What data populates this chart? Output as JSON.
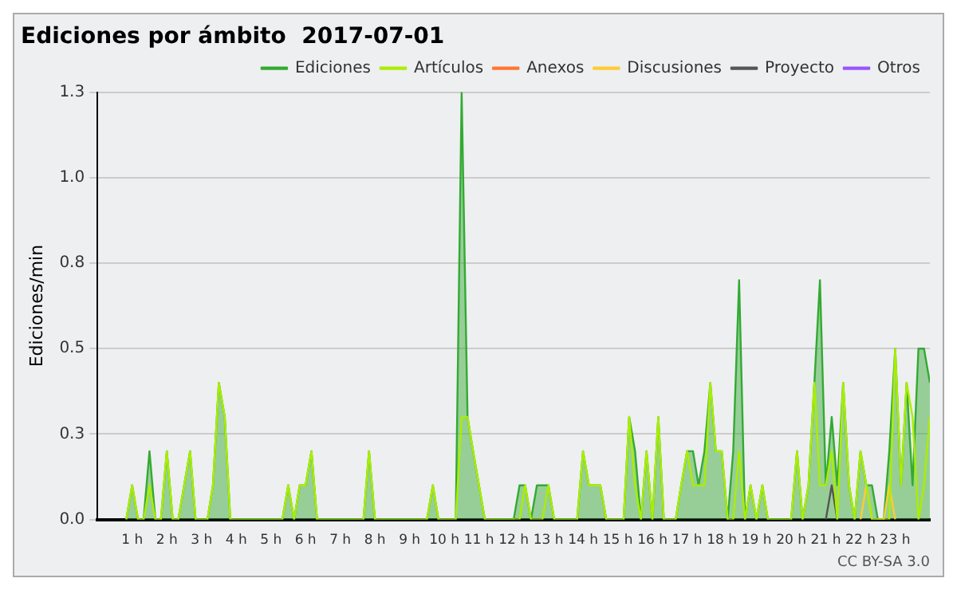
{
  "chart_data": {
    "type": "line",
    "title": "Ediciones por ámbito  2017-07-01",
    "ylabel": "Ediciones/min",
    "xlim": [
      0,
      24
    ],
    "xticks": [
      {
        "value": 1,
        "label": "1 h"
      },
      {
        "value": 2,
        "label": "2 h"
      },
      {
        "value": 3,
        "label": "3 h"
      },
      {
        "value": 4,
        "label": "4 h"
      },
      {
        "value": 5,
        "label": "5 h"
      },
      {
        "value": 6,
        "label": "6 h"
      },
      {
        "value": 7,
        "label": "7 h"
      },
      {
        "value": 8,
        "label": "8 h"
      },
      {
        "value": 9,
        "label": "9 h"
      },
      {
        "value": 10,
        "label": "10 h"
      },
      {
        "value": 11,
        "label": "11 h"
      },
      {
        "value": 12,
        "label": "12 h"
      },
      {
        "value": 13,
        "label": "13 h"
      },
      {
        "value": 14,
        "label": "14 h"
      },
      {
        "value": 15,
        "label": "15 h"
      },
      {
        "value": 16,
        "label": "16 h"
      },
      {
        "value": 17,
        "label": "17 h"
      },
      {
        "value": 18,
        "label": "18 h"
      },
      {
        "value": 19,
        "label": "19 h"
      },
      {
        "value": 20,
        "label": "20 h"
      },
      {
        "value": 21,
        "label": "21 h"
      },
      {
        "value": 22,
        "label": "22 h"
      },
      {
        "value": 23,
        "label": "23 h"
      }
    ],
    "ylim": [
      0,
      1.25
    ],
    "yticks": [
      {
        "value": 0,
        "label": "0.0"
      },
      {
        "value": 0.25,
        "label": "0.3"
      },
      {
        "value": 0.5,
        "label": "0.5"
      },
      {
        "value": 0.75,
        "label": "0.8"
      },
      {
        "value": 1,
        "label": "1.0"
      },
      {
        "value": 1.25,
        "label": "1.3"
      }
    ],
    "grid": "y",
    "legend": "top right",
    "marker": "none",
    "annotations": [
      "CC BY-SA 3.0"
    ],
    "series": [
      {
        "name": "Ediciones",
        "type": "area",
        "color": "#33aa33",
        "x": [
          0.83,
          1.0,
          1.17,
          1.33,
          1.5,
          1.67,
          1.83,
          2.0,
          2.17,
          2.33,
          2.5,
          2.67,
          2.83,
          3.17,
          3.33,
          3.5,
          3.67,
          3.83,
          5.33,
          5.5,
          5.67,
          5.83,
          6.0,
          6.17,
          6.33,
          7.67,
          7.83,
          8.0,
          9.5,
          9.67,
          9.83,
          10.33,
          10.5,
          10.67,
          10.83,
          11.0,
          11.17,
          12.0,
          12.17,
          12.33,
          12.5,
          12.67,
          12.83,
          13.0,
          13.17,
          13.83,
          14.0,
          14.17,
          14.33,
          14.5,
          14.67,
          15.17,
          15.33,
          15.5,
          15.67,
          15.83,
          16.0,
          16.17,
          16.33,
          16.67,
          16.83,
          17.0,
          17.17,
          17.33,
          17.5,
          17.67,
          17.83,
          18.0,
          18.17,
          18.33,
          18.5,
          18.67,
          18.83,
          19.0,
          19.17,
          19.33,
          20.0,
          20.17,
          20.33,
          20.5,
          20.67,
          20.83,
          21.0,
          21.17,
          21.33,
          21.5,
          21.67,
          21.83,
          22.0,
          22.17,
          22.33,
          22.5,
          22.67,
          22.83,
          23.0,
          23.17,
          23.33,
          23.5,
          23.67,
          23.83,
          24.0
        ],
        "values": [
          0,
          0.1,
          0,
          0,
          0.2,
          0,
          0,
          0.2,
          0,
          0,
          0.1,
          0.2,
          0,
          0,
          0.1,
          0.4,
          0.3,
          0,
          0,
          0.1,
          0,
          0.1,
          0.1,
          0.2,
          0,
          0,
          0.2,
          0,
          0,
          0.1,
          0,
          0,
          1.25,
          0.3,
          0.2,
          0.1,
          0,
          0,
          0.1,
          0.1,
          0,
          0.1,
          0.1,
          0.1,
          0,
          0,
          0.2,
          0.1,
          0.1,
          0.1,
          0,
          0,
          0.3,
          0.2,
          0,
          0.2,
          0,
          0.3,
          0,
          0,
          0.1,
          0.2,
          0.2,
          0.1,
          0.2,
          0.4,
          0.2,
          0.2,
          0,
          0.2,
          0.7,
          0,
          0.1,
          0,
          0.1,
          0,
          0,
          0.2,
          0,
          0.1,
          0.4,
          0.7,
          0.1,
          0.3,
          0.1,
          0.4,
          0.1,
          0,
          0.2,
          0.1,
          0.1,
          0,
          0,
          0.2,
          0.5,
          0.1,
          0.4,
          0.1,
          0.5,
          0.5,
          0.4
        ]
      },
      {
        "name": "Artículos",
        "color": "#aaee00",
        "x": [
          0.83,
          1.0,
          1.17,
          1.33,
          1.5,
          1.67,
          1.83,
          2.0,
          2.17,
          2.33,
          2.5,
          2.67,
          2.83,
          3.17,
          3.33,
          3.5,
          3.67,
          3.83,
          5.33,
          5.5,
          5.67,
          5.83,
          6.0,
          6.17,
          6.33,
          7.67,
          7.83,
          8.0,
          9.5,
          9.67,
          9.83,
          10.33,
          10.5,
          10.67,
          10.83,
          11.0,
          11.17,
          12.17,
          12.33,
          12.5,
          12.83,
          13.0,
          13.17,
          13.83,
          14.0,
          14.17,
          14.33,
          14.5,
          14.67,
          15.17,
          15.33,
          15.5,
          15.67,
          15.83,
          16.0,
          16.17,
          16.33,
          16.67,
          16.83,
          17.0,
          17.17,
          17.33,
          17.5,
          17.67,
          17.83,
          18.0,
          18.17,
          18.33,
          18.5,
          18.67,
          18.83,
          19.0,
          19.17,
          19.33,
          20.0,
          20.17,
          20.33,
          20.5,
          20.67,
          20.83,
          21.0,
          21.17,
          21.33,
          21.5,
          21.67,
          21.83,
          22.0,
          22.17,
          22.33,
          22.5,
          22.83,
          23.0,
          23.17,
          23.33,
          23.5,
          23.67,
          23.83,
          24.0
        ],
        "values": [
          0,
          0.1,
          0,
          0,
          0.1,
          0,
          0,
          0.2,
          0,
          0,
          0.1,
          0.2,
          0,
          0,
          0.1,
          0.4,
          0.3,
          0,
          0,
          0.1,
          0,
          0.1,
          0.1,
          0.2,
          0,
          0,
          0.2,
          0,
          0,
          0.1,
          0,
          0,
          0.3,
          0.3,
          0.2,
          0.1,
          0,
          0,
          0.1,
          0,
          0,
          0.1,
          0,
          0,
          0.2,
          0.1,
          0.1,
          0.1,
          0,
          0,
          0.3,
          0.1,
          0,
          0.2,
          0,
          0.3,
          0,
          0,
          0.1,
          0.2,
          0.1,
          0.1,
          0.1,
          0.4,
          0.2,
          0.2,
          0,
          0,
          0.2,
          0,
          0.1,
          0,
          0.1,
          0,
          0,
          0.2,
          0,
          0.1,
          0.4,
          0.1,
          0.1,
          0.2,
          0,
          0.4,
          0.1,
          0,
          0.2,
          0.1,
          0,
          0,
          0,
          0.5,
          0.1,
          0.4,
          0.3,
          0,
          0.1,
          0.3
        ]
      },
      {
        "name": "Anexos",
        "color": "#ff7733"
      },
      {
        "name": "Discusiones",
        "color": "#ffcc33",
        "x": [
          22.0,
          22.17,
          22.33,
          22.67,
          22.83,
          23.0
        ],
        "values": [
          0,
          0.1,
          0,
          0,
          0.1,
          0
        ]
      },
      {
        "name": "Proyecto",
        "color": "#555555",
        "x": [
          21.0,
          21.17,
          21.33
        ],
        "values": [
          0,
          0.1,
          0
        ]
      },
      {
        "name": "Otros",
        "color": "#9955ff"
      }
    ]
  }
}
